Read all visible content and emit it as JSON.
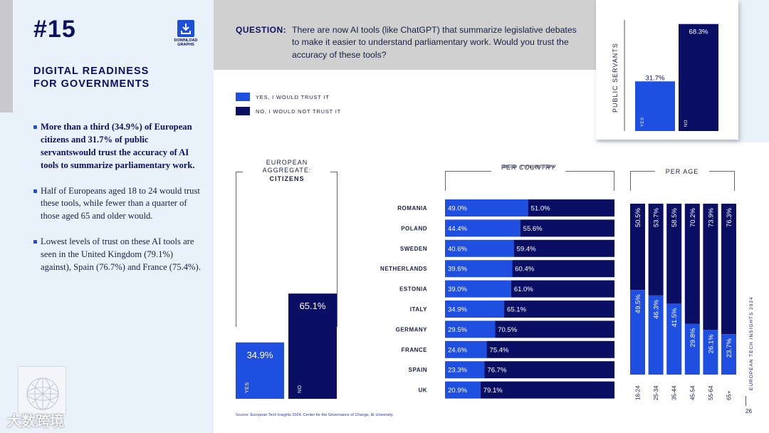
{
  "sidebar": {
    "report_number": "#15",
    "download_label_line1": "DOWNLOAD",
    "download_label_line2": "GRAPHS",
    "section_title_line1": "DIGITAL READINESS",
    "section_title_line2": "FOR GOVERNMENTS",
    "bullets": [
      "More than a third (34.9%) of European citizens and 31.7% of public servantswould trust the accuracy of AI tools to summarize parliamentary work.",
      "Half of Europeans aged 18 to 24 would trust these tools, while fewer than a quarter of those aged 65 and older would.",
      "Lowest levels of trust on these AI tools are seen in the United Kingdom (79.1%) against), Spain (76.7%) and France (75.4%)."
    ]
  },
  "question": {
    "label": "QUESTION:",
    "text": "There are now AI tools (like ChatGPT) that summarize legislative debates to make it easier to understand parliamentary work. Would you trust the accuracy of these tools?"
  },
  "legend": {
    "yes": "YES, I WOULD TRUST IT",
    "no": "NO, I WOULD NOT TRUST IT"
  },
  "colors": {
    "yes": "#1f4fe0",
    "no": "#0b0f63",
    "navy_text": "#0b1160",
    "sidebar_bg": "#e9f1fb"
  },
  "footer": {
    "source": "Source: European Tech Insights 2024. Center for the Governance of Change, IE University.",
    "brand": "EUROPEAN TECH INSIGHTS 2024",
    "page": "26",
    "watermark": "大数跨境"
  },
  "chart_data": [
    {
      "type": "bar",
      "title": "PUBLIC SERVANTS",
      "categories": [
        "YES",
        "NO"
      ],
      "values": [
        31.7,
        68.3
      ],
      "labels": [
        "31.7%",
        "68.3%"
      ]
    },
    {
      "type": "bar",
      "title_line1": "EUROPEAN",
      "title_line2": "AGGREGATE:",
      "title_line3": "CITIZENS",
      "categories": [
        "YES",
        "NO"
      ],
      "values": [
        34.9,
        65.1
      ],
      "labels": [
        "34.9%",
        "65.1%"
      ]
    },
    {
      "type": "bar",
      "orientation": "horizontal-stacked",
      "title": "PER COUNTRY",
      "categories": [
        "ROMANIA",
        "POLAND",
        "SWEDEN",
        "NETHERLANDS",
        "ESTONIA",
        "ITALY",
        "GERMANY",
        "FRANCE",
        "SPAIN",
        "UK"
      ],
      "series": [
        {
          "name": "YES, I WOULD TRUST IT",
          "values": [
            49.0,
            44.4,
            40.6,
            39.6,
            39.0,
            34.9,
            29.5,
            24.6,
            23.3,
            20.9
          ],
          "labels": [
            "49.0%",
            "44.4%",
            "40.6%",
            "39.6%",
            "39.0%",
            "34.9%",
            "29.5%",
            "24.6%",
            "23.3%",
            "20.9%"
          ]
        },
        {
          "name": "NO, I WOULD NOT TRUST IT",
          "values": [
            51.0,
            55.6,
            59.4,
            60.4,
            61.0,
            65.1,
            70.5,
            75.4,
            76.7,
            79.1
          ],
          "labels": [
            "51.0%",
            "55.6%",
            "59.4%",
            "60.4%",
            "61.0%",
            "65.1%",
            "70.5%",
            "75.4%",
            "76.7%",
            "79.1%"
          ]
        }
      ],
      "xlim": [
        0,
        100
      ]
    },
    {
      "type": "bar",
      "orientation": "vertical-stacked",
      "title": "PER AGE",
      "categories": [
        "18-24",
        "25-34",
        "35-44",
        "45-54",
        "55-64",
        "65+"
      ],
      "series": [
        {
          "name": "YES, I WOULD TRUST IT",
          "values": [
            49.5,
            46.3,
            41.5,
            29.8,
            26.1,
            23.7
          ],
          "labels": [
            "49.5%",
            "46.3%",
            "41.5%",
            "29.8%",
            "26.1%",
            "23.7%"
          ]
        },
        {
          "name": "NO, I WOULD NOT TRUST IT",
          "values": [
            50.5,
            53.7,
            58.5,
            70.2,
            73.9,
            76.3
          ],
          "labels": [
            "50.5%",
            "53.7%",
            "58.5%",
            "70.2%",
            "73.9%",
            "76.3%"
          ]
        }
      ],
      "ylim": [
        0,
        100
      ]
    }
  ]
}
